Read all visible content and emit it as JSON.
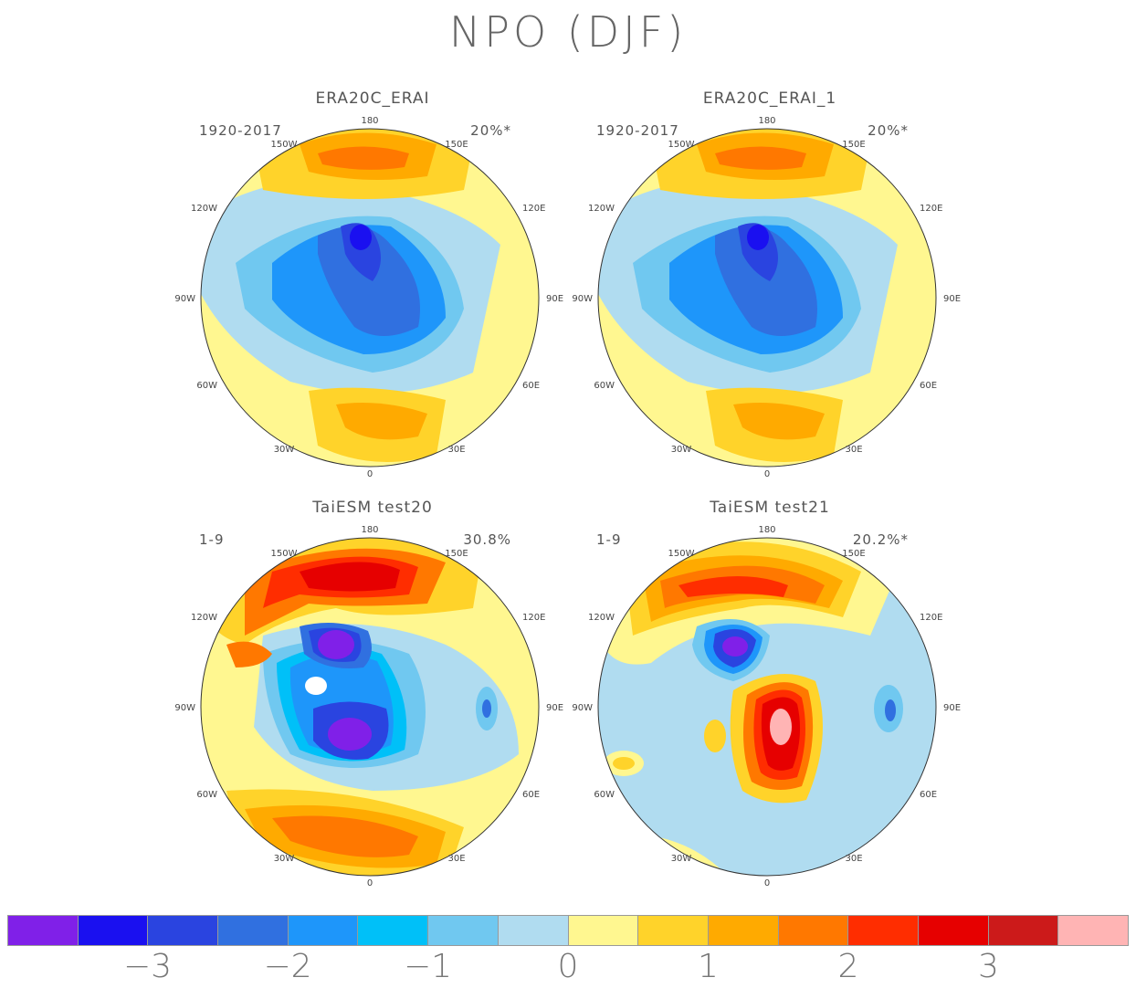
{
  "title": "NPO (DJF)",
  "panels": [
    {
      "title": "ERA20C_ERAI",
      "period": "1920-2017",
      "variance": "20%*"
    },
    {
      "title": "ERA20C_ERAI_1",
      "period": "1920-2017",
      "variance": "20%*"
    },
    {
      "title": "TaiESM test20",
      "period": "1-9",
      "variance": "30.8%"
    },
    {
      "title": "TaiESM test21",
      "period": "1-9",
      "variance": "20.2%*"
    }
  ],
  "longitude_labels": [
    "180",
    "150E",
    "120E",
    "90E",
    "60E",
    "30E",
    "0",
    "30W",
    "60W",
    "90W",
    "120W",
    "150W"
  ],
  "colorbar": {
    "colors": [
      "#8020e8",
      "#1a10f0",
      "#2a44e0",
      "#3070e0",
      "#1e96fa",
      "#00c0f8",
      "#70c8f0",
      "#b0dcf0",
      "#fff790",
      "#ffd32a",
      "#ffaa00",
      "#ff7800",
      "#ff2d00",
      "#e60000",
      "#cc1a1a",
      "#ffb4b4"
    ],
    "tick_labels": [
      "-3",
      "-2",
      "-1",
      "0",
      "1",
      "2",
      "3"
    ]
  }
}
